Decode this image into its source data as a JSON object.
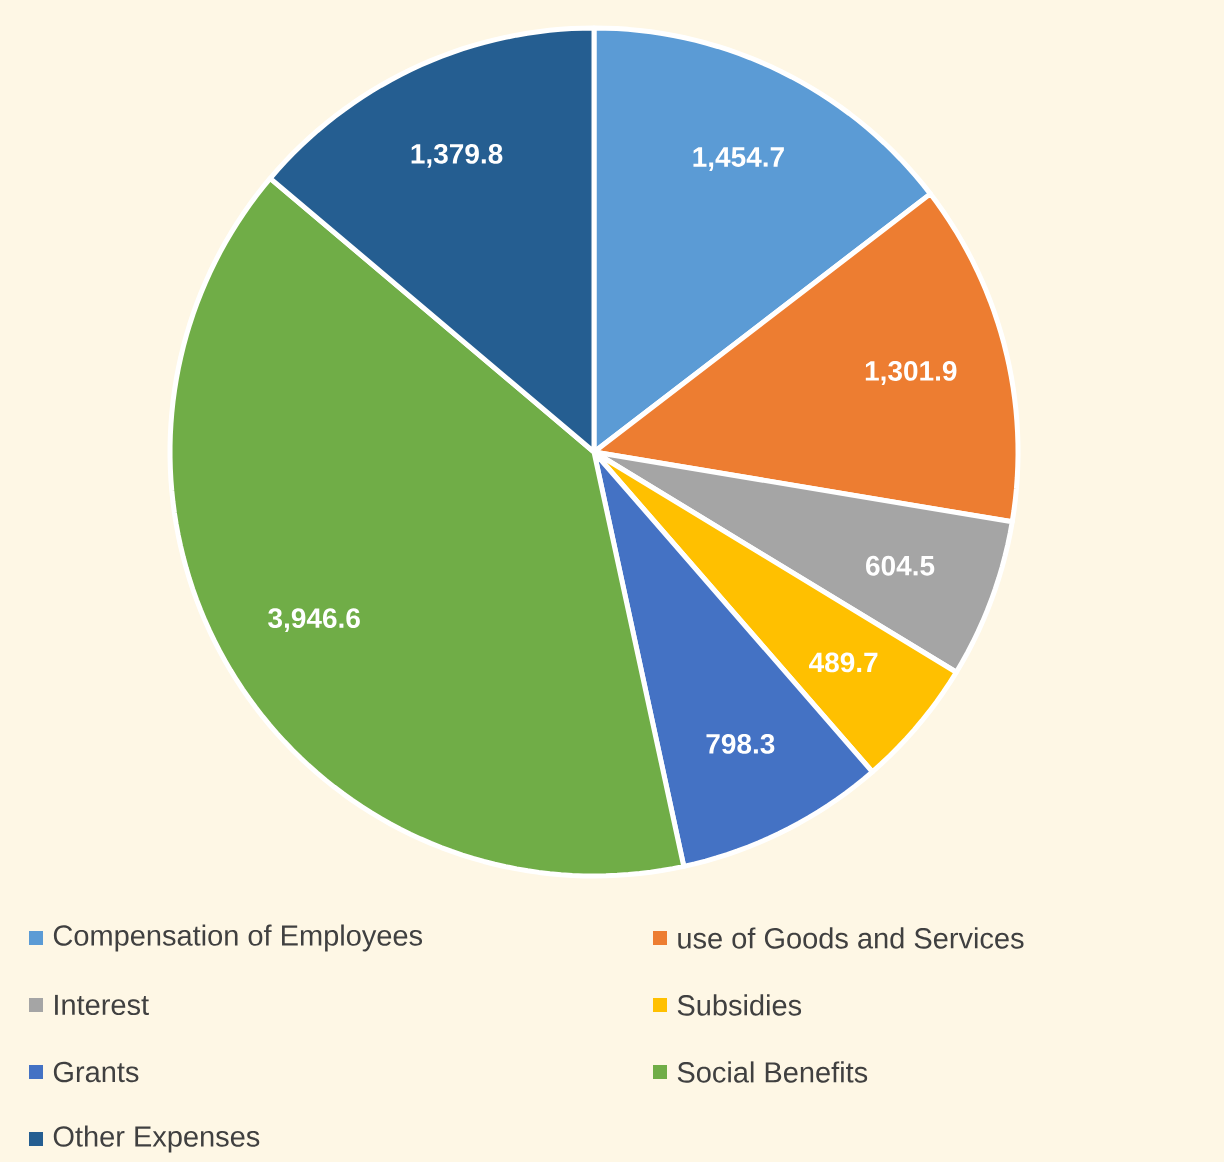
{
  "chart_data": {
    "type": "pie",
    "categories": [
      "Compensation of Employees",
      "use of Goods and Services",
      "Interest",
      "Subsidies",
      "Grants",
      "Social Benefits",
      "Other Expenses"
    ],
    "values": [
      1454.7,
      1301.9,
      604.5,
      489.7,
      798.3,
      3946.6,
      1379.8
    ],
    "value_labels": [
      "1,454.7",
      "1,301.9",
      "604.5",
      "489.7",
      "798.3",
      "3,946.6",
      "1,379.8"
    ],
    "colors": [
      "#5b9bd5",
      "#ed7d31",
      "#a5a5a5",
      "#ffc000",
      "#4472c4",
      "#70ad47",
      "#255e91"
    ],
    "legend": "bottom"
  }
}
